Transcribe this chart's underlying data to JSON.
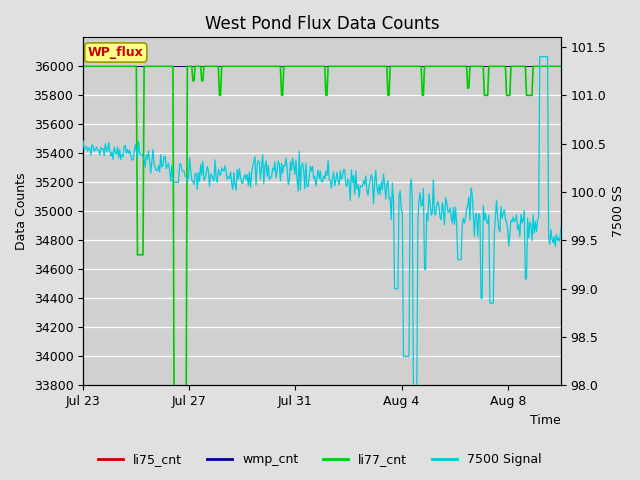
{
  "title": "West Pond Flux Data Counts",
  "xlabel": "Time",
  "ylabel_left": "Data Counts",
  "ylabel_right": "7500 SS",
  "ylim_left": [
    33800,
    36200
  ],
  "ylim_right": [
    98.0,
    101.6
  ],
  "fig_facecolor": "#e0e0e0",
  "plot_facecolor": "#d0d0d0",
  "grid_color": "#ffffff",
  "xtick_labels": [
    "Jul 23",
    "Jul 27",
    "Jul 31",
    "Aug 4",
    "Aug 8"
  ],
  "xtick_positions": [
    0,
    4,
    8,
    12,
    16
  ],
  "yticks_left": [
    33800,
    34000,
    34200,
    34400,
    34600,
    34800,
    35000,
    35200,
    35400,
    35600,
    35800,
    36000
  ],
  "yticks_right": [
    98.0,
    98.5,
    99.0,
    99.5,
    100.0,
    100.5,
    101.0,
    101.5
  ],
  "color_li75": "#cc0000",
  "color_wmp": "#000099",
  "color_li77": "#00cc00",
  "color_7500": "#00ccdd",
  "wp_flux_facecolor": "#ffff88",
  "wp_flux_edgecolor": "#999900",
  "wp_flux_textcolor": "#cc0000",
  "title_fontsize": 12,
  "axis_fontsize": 9,
  "legend_fontsize": 9
}
